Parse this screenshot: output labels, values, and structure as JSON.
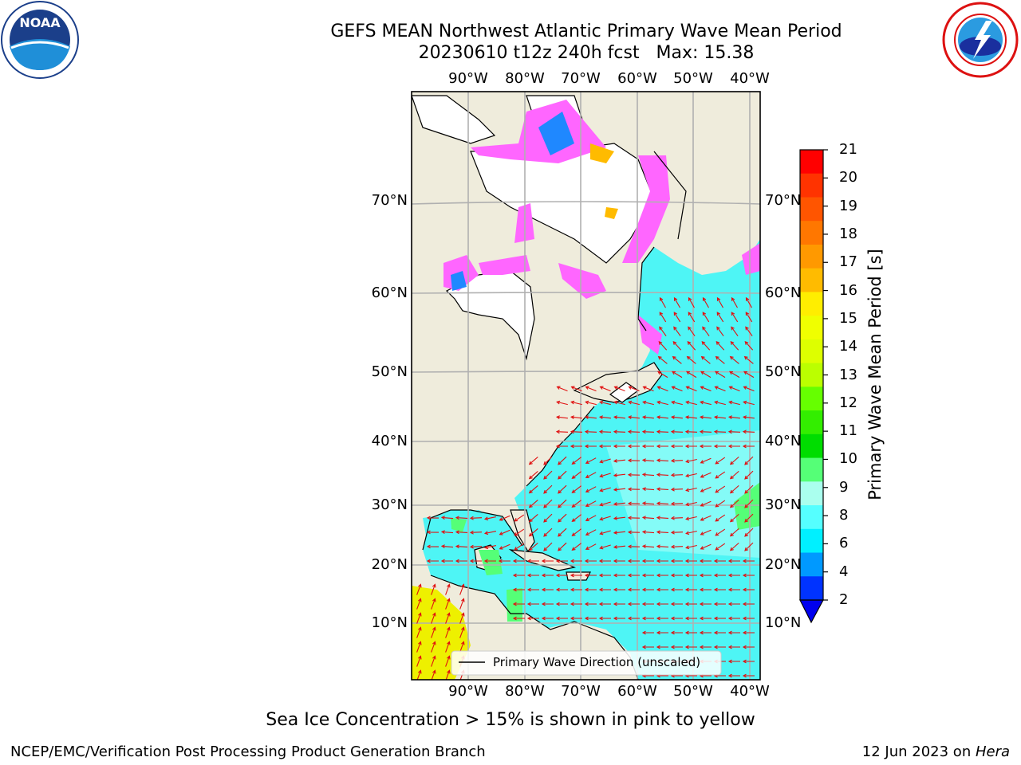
{
  "title": {
    "line1": "GEFS MEAN Northwest Atlantic Primary Wave Mean Period",
    "line2": "20230610 t12z 240h fcst   Max: 15.38"
  },
  "logos": {
    "left": {
      "text": "NOAA",
      "ring_text": "NATIONAL OCEANIC AND ATMOSPHERIC ADMINISTRATION · U.S. DEPARTMENT OF COMMERCE"
    },
    "right": {
      "ring_text": "NATIONAL WEATHER SERVICE"
    }
  },
  "map": {
    "lon_labels": [
      "90°W",
      "80°W",
      "70°W",
      "60°W",
      "50°W",
      "40°W"
    ],
    "lat_labels": [
      "70°N",
      "60°N",
      "50°N",
      "40°N",
      "30°N",
      "20°N",
      "10°N"
    ],
    "legend_label": "Primary Wave Direction (unscaled)",
    "colors": {
      "ocean_fill": "#4ef5f5",
      "land": "#efecdc",
      "ice": "#ff66ff",
      "arrow": "#e01010",
      "tropics": "#eef000"
    }
  },
  "colorbar": {
    "label": "Primary Wave Mean Period [s]",
    "ticks": [
      "21",
      "20",
      "19",
      "18",
      "17",
      "16",
      "15",
      "14",
      "13",
      "12",
      "11",
      "10",
      "9",
      "8",
      "6",
      "4",
      "2"
    ],
    "colors": [
      "#ff0000",
      "#ff3300",
      "#ff5500",
      "#ff7700",
      "#ff9900",
      "#ffbb00",
      "#ffee00",
      "#f0ff00",
      "#ddff00",
      "#bbff00",
      "#66ff00",
      "#33ee00",
      "#00dd00",
      "#55ff77",
      "#aaffee",
      "#55ffff",
      "#00f0ff",
      "#0099ff",
      "#0033ff"
    ],
    "under_color": "#0000ee"
  },
  "notes": {
    "ice": "Sea Ice Concentration > 15% is shown in pink to yellow"
  },
  "footer": {
    "left": "NCEP/EMC/Verification Post Processing Product Generation Branch",
    "date": "12 Jun 2023 on ",
    "machine": "Hera"
  }
}
